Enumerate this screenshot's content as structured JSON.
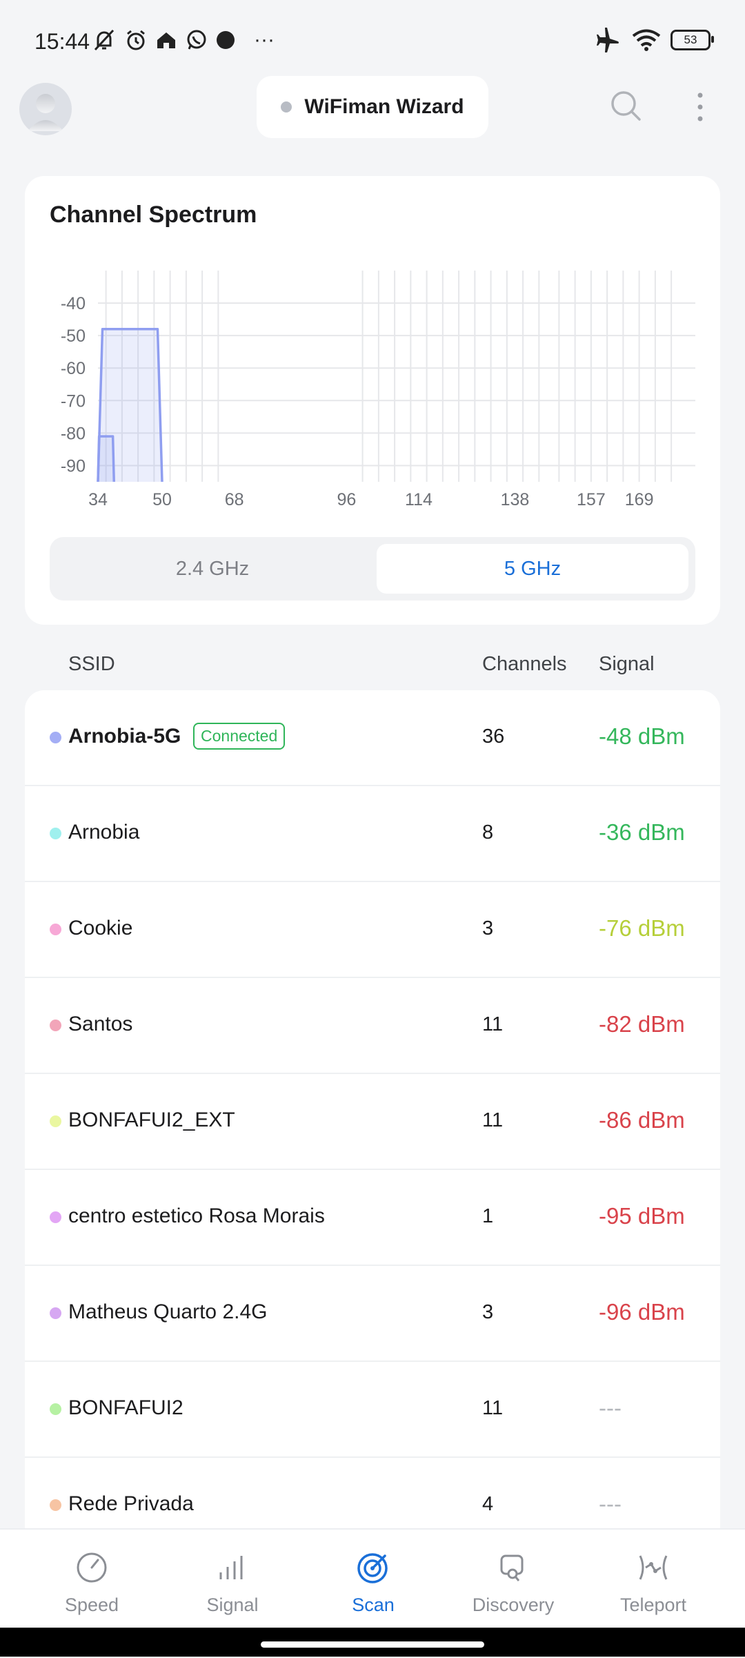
{
  "status_bar": {
    "time": "15:44",
    "battery": "53",
    "more": "···"
  },
  "header": {
    "title": "WiFiman Wizard"
  },
  "spectrum": {
    "title": "Channel Spectrum",
    "bands": [
      "2.4 GHz",
      "5 GHz"
    ],
    "active_band": "5 GHz"
  },
  "chart_data": {
    "type": "area",
    "title": "Channel Spectrum",
    "xlabel": "",
    "ylabel": "",
    "x_ticks": [
      34,
      50,
      68,
      96,
      114,
      138,
      157,
      169
    ],
    "y_ticks": [
      -40,
      -50,
      -60,
      -70,
      -80,
      -90
    ],
    "ylim": [
      -95,
      -30
    ],
    "xlim": [
      34,
      183
    ],
    "grid": true,
    "series": [
      {
        "name": "Arnobia-5G",
        "channel": 36,
        "width_channels": [
          34,
          50
        ],
        "signal_dbm": -48,
        "color": "#8f9ef0"
      },
      {
        "channel": 36,
        "width_channels": [
          34,
          38
        ],
        "signal_dbm": -81,
        "color": "#8f9ef0"
      }
    ]
  },
  "table": {
    "headers": {
      "ssid": "SSID",
      "channels": "Channels",
      "signal": "Signal"
    },
    "rows": [
      {
        "ssid": "Arnobia-5G",
        "connected": "Connected",
        "channel": "36",
        "signal": "-48 dBm",
        "dot": "#a4aef5",
        "signal_color": "#35b75c",
        "bold": true
      },
      {
        "ssid": "Arnobia",
        "channel": "8",
        "signal": "-36 dBm",
        "dot": "#9ff0ee",
        "signal_color": "#35b75c"
      },
      {
        "ssid": "Cookie",
        "channel": "3",
        "signal": "-76 dBm",
        "dot": "#f7a8d6",
        "signal_color": "#b6cf3a"
      },
      {
        "ssid": "Santos",
        "channel": "11",
        "signal": "-82 dBm",
        "dot": "#f2a5b9",
        "signal_color": "#d9434b"
      },
      {
        "ssid": "BONFAFUI2_EXT",
        "channel": "11",
        "signal": "-86 dBm",
        "dot": "#eaf7a0",
        "signal_color": "#d9434b"
      },
      {
        "ssid": "centro estetico Rosa Morais",
        "channel": "1",
        "signal": "-95 dBm",
        "dot": "#e3a6f5",
        "signal_color": "#d9434b"
      },
      {
        "ssid": "Matheus Quarto 2.4G",
        "channel": "3",
        "signal": "-96 dBm",
        "dot": "#d6a7f2",
        "signal_color": "#d9434b"
      },
      {
        "ssid": "BONFAFUI2",
        "channel": "11",
        "signal": "---",
        "dot": "#b6f1a3",
        "signal_color": "#b4b7bc"
      },
      {
        "ssid": "Rede Privada",
        "channel": "4",
        "signal": "---",
        "dot": "#f7c4a3",
        "signal_color": "#b4b7bc"
      }
    ]
  },
  "nav": {
    "items": [
      {
        "label": "Speed",
        "icon": "speedometer-icon"
      },
      {
        "label": "Signal",
        "icon": "signal-bars-icon"
      },
      {
        "label": "Scan",
        "icon": "radar-icon",
        "active": true
      },
      {
        "label": "Discovery",
        "icon": "device-search-icon"
      },
      {
        "label": "Teleport",
        "icon": "teleport-icon"
      }
    ]
  },
  "colors": {
    "accent": "#1a6fd8",
    "good": "#35b75c",
    "fair": "#b6cf3a",
    "bad": "#d9434b",
    "spectrum_line": "#8f9ef0"
  }
}
